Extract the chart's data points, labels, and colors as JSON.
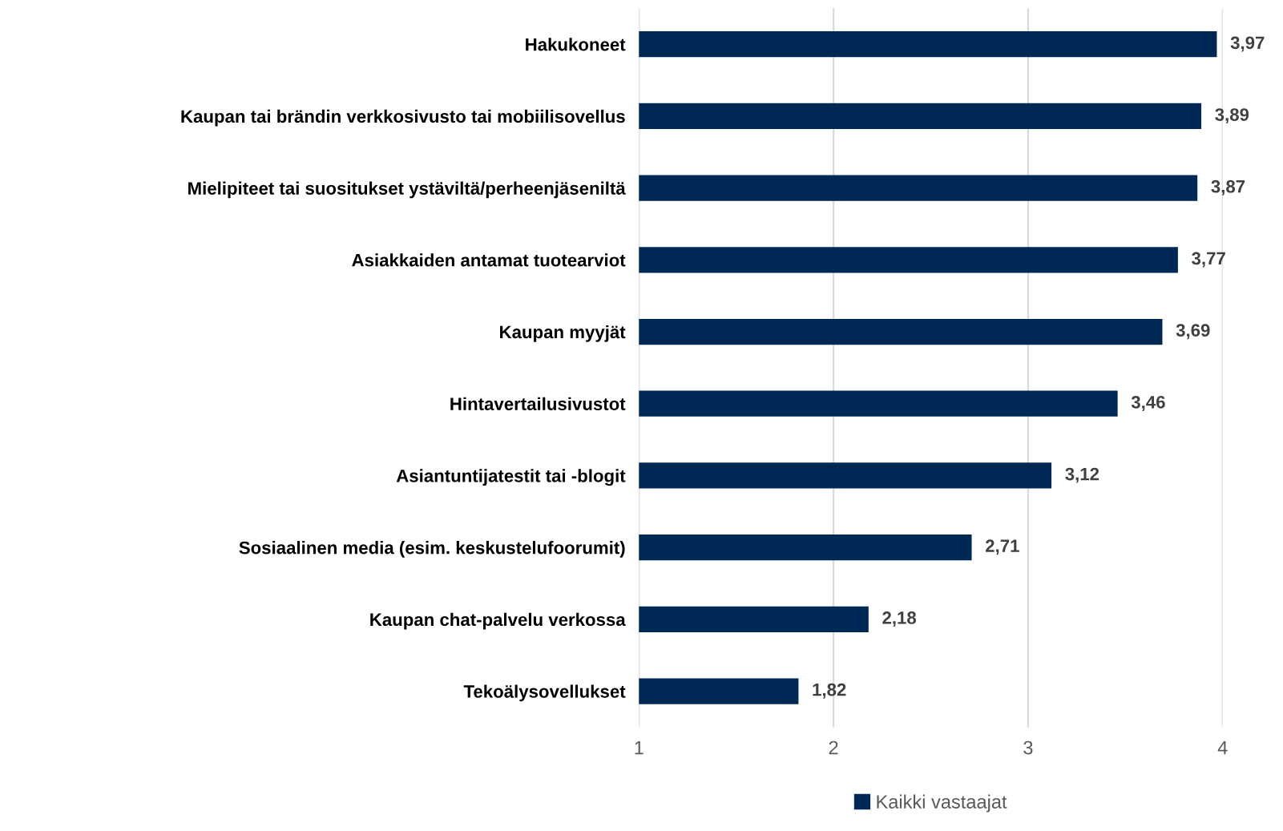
{
  "chart_data": {
    "type": "bar",
    "orientation": "horizontal",
    "categories": [
      "Hakukoneet",
      "Kaupan tai brändin verkkosivusto tai mobiilisovellus",
      "Mielipiteet tai suositukset ystäviltä/perheenjäseniltä",
      "Asiakkaiden antamat tuotearviot",
      "Kaupan myyjät",
      "Hintavertailusivustot",
      "Asiantuntijatestit tai -blogit",
      "Sosiaalinen media (esim. keskustelufoorumit)",
      "Kaupan chat-palvelu verkossa",
      "Tekoälysovellukset"
    ],
    "series": [
      {
        "name": "Kaikki vastaajat",
        "color": "#002855",
        "values": [
          3.97,
          3.89,
          3.87,
          3.77,
          3.69,
          3.46,
          3.12,
          2.71,
          2.18,
          1.82
        ],
        "value_labels": [
          "3,97",
          "3,89",
          "3,87",
          "3,77",
          "3,69",
          "3,46",
          "3,12",
          "2,71",
          "2,18",
          "1,82"
        ]
      }
    ],
    "xlim": [
      1,
      4
    ],
    "xticks": [
      1,
      2,
      3,
      4
    ],
    "grid": "x",
    "legend": "bottom"
  }
}
